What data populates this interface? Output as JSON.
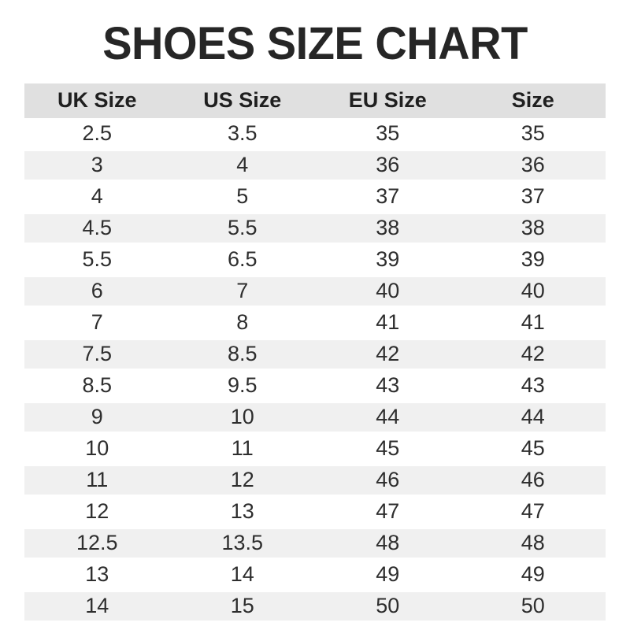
{
  "title": "SHOES SIZE CHART",
  "table": {
    "headers": [
      "UK Size",
      "US Size",
      "EU Size",
      "Size"
    ],
    "rows": [
      [
        "2.5",
        "3.5",
        "35",
        "35"
      ],
      [
        "3",
        "4",
        "36",
        "36"
      ],
      [
        "4",
        "5",
        "37",
        "37"
      ],
      [
        "4.5",
        "5.5",
        "38",
        "38"
      ],
      [
        "5.5",
        "6.5",
        "39",
        "39"
      ],
      [
        "6",
        "7",
        "40",
        "40"
      ],
      [
        "7",
        "8",
        "41",
        "41"
      ],
      [
        "7.5",
        "8.5",
        "42",
        "42"
      ],
      [
        "8.5",
        "9.5",
        "43",
        "43"
      ],
      [
        "9",
        "10",
        "44",
        "44"
      ],
      [
        "10",
        "11",
        "45",
        "45"
      ],
      [
        "11",
        "12",
        "46",
        "46"
      ],
      [
        "12",
        "13",
        "47",
        "47"
      ],
      [
        "12.5",
        "13.5",
        "48",
        "48"
      ],
      [
        "13",
        "14",
        "49",
        "49"
      ],
      [
        "14",
        "15",
        "50",
        "50"
      ]
    ]
  },
  "colors": {
    "title_text": "#262626",
    "header_bg": "#e0e0e0",
    "row_alt_bg": "#f0f0f0",
    "row_bg": "#ffffff",
    "cell_text": "#2e2e2e"
  },
  "chart_data": {
    "type": "table",
    "title": "SHOES SIZE CHART",
    "columns": [
      "UK Size",
      "US Size",
      "EU Size",
      "Size"
    ],
    "rows": [
      [
        2.5,
        3.5,
        35,
        35
      ],
      [
        3,
        4,
        36,
        36
      ],
      [
        4,
        5,
        37,
        37
      ],
      [
        4.5,
        5.5,
        38,
        38
      ],
      [
        5.5,
        6.5,
        39,
        39
      ],
      [
        6,
        7,
        40,
        40
      ],
      [
        7,
        8,
        41,
        41
      ],
      [
        7.5,
        8.5,
        42,
        42
      ],
      [
        8.5,
        9.5,
        43,
        43
      ],
      [
        9,
        10,
        44,
        44
      ],
      [
        10,
        11,
        45,
        45
      ],
      [
        11,
        12,
        46,
        46
      ],
      [
        12,
        13,
        47,
        47
      ],
      [
        12.5,
        13.5,
        48,
        48
      ],
      [
        13,
        14,
        49,
        49
      ],
      [
        14,
        15,
        50,
        50
      ]
    ],
    "layout": {
      "header_background": "#e0e0e0",
      "alternating_row_background": "#f0f0f0",
      "alignment": "center",
      "striped": true
    }
  }
}
